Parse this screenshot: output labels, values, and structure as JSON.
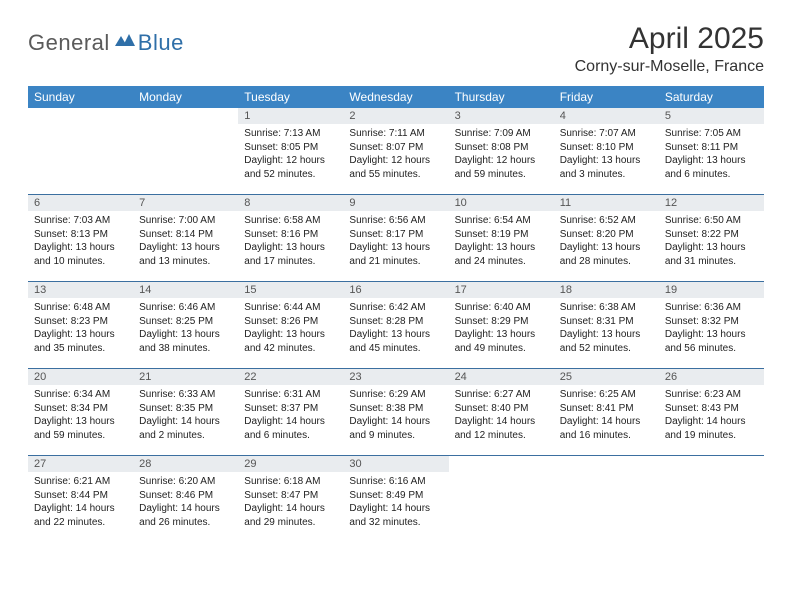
{
  "logo": {
    "general": "General",
    "blue": "Blue"
  },
  "title": "April 2025",
  "location": "Corny-sur-Moselle, France",
  "colors": {
    "header_bg": "#3b84c4",
    "header_text": "#ffffff",
    "daynum_bg": "#e9ecef",
    "daynum_text": "#555555",
    "body_text": "#222222",
    "separator": "#3b6fa0",
    "logo_gray": "#5a5a5a",
    "logo_blue": "#2f6fa8",
    "background": "#ffffff",
    "title_text": "#333333"
  },
  "typography": {
    "title_fontsize": 30,
    "location_fontsize": 16,
    "dayheader_fontsize": 12,
    "daynum_fontsize": 11,
    "cell_fontsize": 10,
    "logo_fontsize": 22
  },
  "dayNames": [
    "Sunday",
    "Monday",
    "Tuesday",
    "Wednesday",
    "Thursday",
    "Friday",
    "Saturday"
  ],
  "weeks": [
    [
      {
        "n": "",
        "sr": "",
        "ss": "",
        "dl": ""
      },
      {
        "n": "",
        "sr": "",
        "ss": "",
        "dl": ""
      },
      {
        "n": "1",
        "sr": "Sunrise: 7:13 AM",
        "ss": "Sunset: 8:05 PM",
        "dl": "Daylight: 12 hours and 52 minutes."
      },
      {
        "n": "2",
        "sr": "Sunrise: 7:11 AM",
        "ss": "Sunset: 8:07 PM",
        "dl": "Daylight: 12 hours and 55 minutes."
      },
      {
        "n": "3",
        "sr": "Sunrise: 7:09 AM",
        "ss": "Sunset: 8:08 PM",
        "dl": "Daylight: 12 hours and 59 minutes."
      },
      {
        "n": "4",
        "sr": "Sunrise: 7:07 AM",
        "ss": "Sunset: 8:10 PM",
        "dl": "Daylight: 13 hours and 3 minutes."
      },
      {
        "n": "5",
        "sr": "Sunrise: 7:05 AM",
        "ss": "Sunset: 8:11 PM",
        "dl": "Daylight: 13 hours and 6 minutes."
      }
    ],
    [
      {
        "n": "6",
        "sr": "Sunrise: 7:03 AM",
        "ss": "Sunset: 8:13 PM",
        "dl": "Daylight: 13 hours and 10 minutes."
      },
      {
        "n": "7",
        "sr": "Sunrise: 7:00 AM",
        "ss": "Sunset: 8:14 PM",
        "dl": "Daylight: 13 hours and 13 minutes."
      },
      {
        "n": "8",
        "sr": "Sunrise: 6:58 AM",
        "ss": "Sunset: 8:16 PM",
        "dl": "Daylight: 13 hours and 17 minutes."
      },
      {
        "n": "9",
        "sr": "Sunrise: 6:56 AM",
        "ss": "Sunset: 8:17 PM",
        "dl": "Daylight: 13 hours and 21 minutes."
      },
      {
        "n": "10",
        "sr": "Sunrise: 6:54 AM",
        "ss": "Sunset: 8:19 PM",
        "dl": "Daylight: 13 hours and 24 minutes."
      },
      {
        "n": "11",
        "sr": "Sunrise: 6:52 AM",
        "ss": "Sunset: 8:20 PM",
        "dl": "Daylight: 13 hours and 28 minutes."
      },
      {
        "n": "12",
        "sr": "Sunrise: 6:50 AM",
        "ss": "Sunset: 8:22 PM",
        "dl": "Daylight: 13 hours and 31 minutes."
      }
    ],
    [
      {
        "n": "13",
        "sr": "Sunrise: 6:48 AM",
        "ss": "Sunset: 8:23 PM",
        "dl": "Daylight: 13 hours and 35 minutes."
      },
      {
        "n": "14",
        "sr": "Sunrise: 6:46 AM",
        "ss": "Sunset: 8:25 PM",
        "dl": "Daylight: 13 hours and 38 minutes."
      },
      {
        "n": "15",
        "sr": "Sunrise: 6:44 AM",
        "ss": "Sunset: 8:26 PM",
        "dl": "Daylight: 13 hours and 42 minutes."
      },
      {
        "n": "16",
        "sr": "Sunrise: 6:42 AM",
        "ss": "Sunset: 8:28 PM",
        "dl": "Daylight: 13 hours and 45 minutes."
      },
      {
        "n": "17",
        "sr": "Sunrise: 6:40 AM",
        "ss": "Sunset: 8:29 PM",
        "dl": "Daylight: 13 hours and 49 minutes."
      },
      {
        "n": "18",
        "sr": "Sunrise: 6:38 AM",
        "ss": "Sunset: 8:31 PM",
        "dl": "Daylight: 13 hours and 52 minutes."
      },
      {
        "n": "19",
        "sr": "Sunrise: 6:36 AM",
        "ss": "Sunset: 8:32 PM",
        "dl": "Daylight: 13 hours and 56 minutes."
      }
    ],
    [
      {
        "n": "20",
        "sr": "Sunrise: 6:34 AM",
        "ss": "Sunset: 8:34 PM",
        "dl": "Daylight: 13 hours and 59 minutes."
      },
      {
        "n": "21",
        "sr": "Sunrise: 6:33 AM",
        "ss": "Sunset: 8:35 PM",
        "dl": "Daylight: 14 hours and 2 minutes."
      },
      {
        "n": "22",
        "sr": "Sunrise: 6:31 AM",
        "ss": "Sunset: 8:37 PM",
        "dl": "Daylight: 14 hours and 6 minutes."
      },
      {
        "n": "23",
        "sr": "Sunrise: 6:29 AM",
        "ss": "Sunset: 8:38 PM",
        "dl": "Daylight: 14 hours and 9 minutes."
      },
      {
        "n": "24",
        "sr": "Sunrise: 6:27 AM",
        "ss": "Sunset: 8:40 PM",
        "dl": "Daylight: 14 hours and 12 minutes."
      },
      {
        "n": "25",
        "sr": "Sunrise: 6:25 AM",
        "ss": "Sunset: 8:41 PM",
        "dl": "Daylight: 14 hours and 16 minutes."
      },
      {
        "n": "26",
        "sr": "Sunrise: 6:23 AM",
        "ss": "Sunset: 8:43 PM",
        "dl": "Daylight: 14 hours and 19 minutes."
      }
    ],
    [
      {
        "n": "27",
        "sr": "Sunrise: 6:21 AM",
        "ss": "Sunset: 8:44 PM",
        "dl": "Daylight: 14 hours and 22 minutes."
      },
      {
        "n": "28",
        "sr": "Sunrise: 6:20 AM",
        "ss": "Sunset: 8:46 PM",
        "dl": "Daylight: 14 hours and 26 minutes."
      },
      {
        "n": "29",
        "sr": "Sunrise: 6:18 AM",
        "ss": "Sunset: 8:47 PM",
        "dl": "Daylight: 14 hours and 29 minutes."
      },
      {
        "n": "30",
        "sr": "Sunrise: 6:16 AM",
        "ss": "Sunset: 8:49 PM",
        "dl": "Daylight: 14 hours and 32 minutes."
      },
      {
        "n": "",
        "sr": "",
        "ss": "",
        "dl": ""
      },
      {
        "n": "",
        "sr": "",
        "ss": "",
        "dl": ""
      },
      {
        "n": "",
        "sr": "",
        "ss": "",
        "dl": ""
      }
    ]
  ]
}
